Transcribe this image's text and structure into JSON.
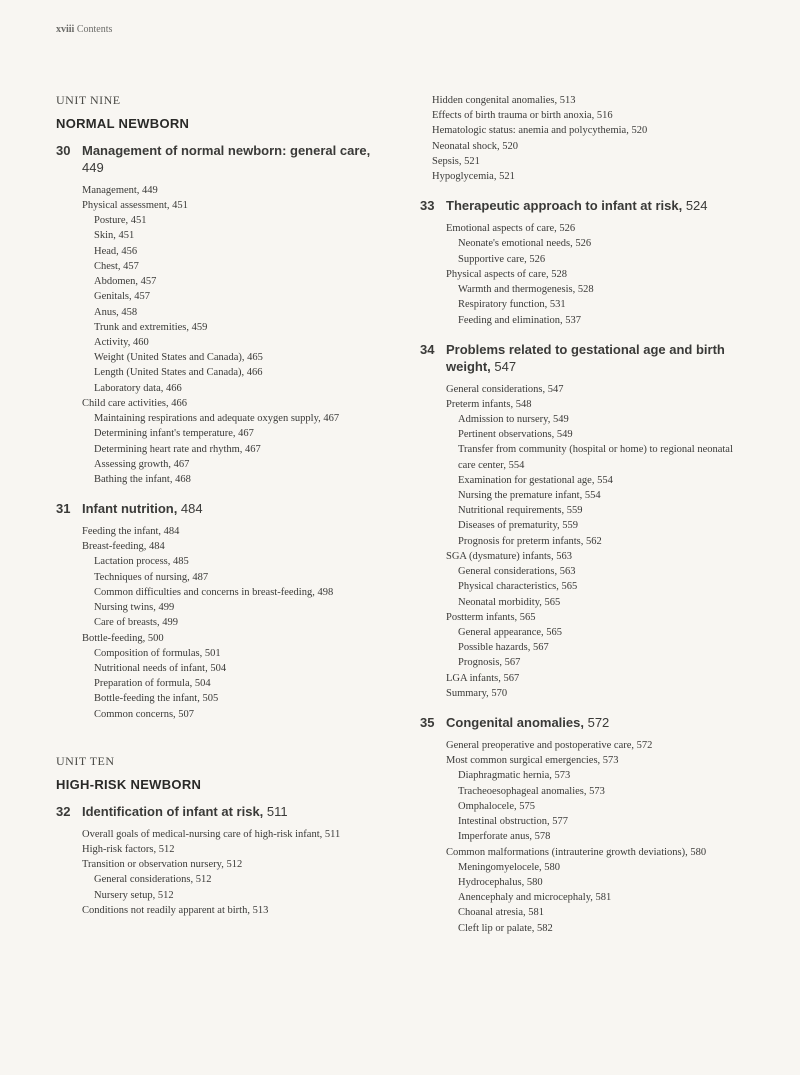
{
  "header": {
    "page_num": "xviii",
    "section": "Contents"
  },
  "left_column": {
    "units": [
      {
        "label": "UNIT NINE",
        "title": "NORMAL NEWBORN",
        "chapters": [
          {
            "num": "30",
            "title": "Management of normal newborn: general care,",
            "page": "449",
            "entries": [
              {
                "t": "Management, 449",
                "l": 0
              },
              {
                "t": "Physical assessment, 451",
                "l": 0
              },
              {
                "t": "Posture, 451",
                "l": 1
              },
              {
                "t": "Skin, 451",
                "l": 1
              },
              {
                "t": "Head, 456",
                "l": 1
              },
              {
                "t": "Chest, 457",
                "l": 1
              },
              {
                "t": "Abdomen, 457",
                "l": 1
              },
              {
                "t": "Genitals, 457",
                "l": 1
              },
              {
                "t": "Anus, 458",
                "l": 1
              },
              {
                "t": "Trunk and extremities, 459",
                "l": 1
              },
              {
                "t": "Activity, 460",
                "l": 1
              },
              {
                "t": "Weight (United States and Canada), 465",
                "l": 1
              },
              {
                "t": "Length (United States and Canada), 466",
                "l": 1
              },
              {
                "t": "Laboratory data, 466",
                "l": 1
              },
              {
                "t": "Child care activities, 466",
                "l": 0
              },
              {
                "t": "Maintaining respirations and adequate oxygen supply, 467",
                "l": 1
              },
              {
                "t": "Determining infant's temperature, 467",
                "l": 1
              },
              {
                "t": "Determining heart rate and rhythm, 467",
                "l": 1
              },
              {
                "t": "Assessing growth, 467",
                "l": 1
              },
              {
                "t": "Bathing the infant, 468",
                "l": 1
              }
            ]
          },
          {
            "num": "31",
            "title": "Infant nutrition,",
            "page": "484",
            "entries": [
              {
                "t": "Feeding the infant, 484",
                "l": 0
              },
              {
                "t": "Breast-feeding, 484",
                "l": 0
              },
              {
                "t": "Lactation process, 485",
                "l": 1
              },
              {
                "t": "Techniques of nursing, 487",
                "l": 1
              },
              {
                "t": "Common difficulties and concerns in breast-feeding, 498",
                "l": 1
              },
              {
                "t": "Nursing twins, 499",
                "l": 1
              },
              {
                "t": "Care of breasts, 499",
                "l": 1
              },
              {
                "t": "Bottle-feeding, 500",
                "l": 0
              },
              {
                "t": "Composition of formulas, 501",
                "l": 1
              },
              {
                "t": "Nutritional needs of infant, 504",
                "l": 1
              },
              {
                "t": "Preparation of formula, 504",
                "l": 1
              },
              {
                "t": "Bottle-feeding the infant, 505",
                "l": 1
              },
              {
                "t": "Common concerns, 507",
                "l": 1
              }
            ]
          }
        ]
      },
      {
        "label": "UNIT TEN",
        "title": "HIGH-RISK NEWBORN",
        "spacer": true,
        "chapters": [
          {
            "num": "32",
            "title": "Identification of infant at risk,",
            "page": "511",
            "entries": [
              {
                "t": "Overall goals of medical-nursing care of high-risk infant, 511",
                "l": 0
              },
              {
                "t": "High-risk factors, 512",
                "l": 0
              },
              {
                "t": "Transition or observation nursery, 512",
                "l": 0
              },
              {
                "t": "General considerations, 512",
                "l": 1
              },
              {
                "t": "Nursery setup, 512",
                "l": 1
              },
              {
                "t": "Conditions not readily apparent at birth, 513",
                "l": 0
              }
            ]
          }
        ]
      }
    ]
  },
  "right_column": {
    "lead_entries": [
      {
        "t": "Hidden congenital anomalies, 513",
        "l": 1
      },
      {
        "t": "Effects of birth trauma or birth anoxia, 516",
        "l": 1
      },
      {
        "t": "Hematologic status: anemia and polycythemia, 520",
        "l": 1
      },
      {
        "t": "Neonatal shock, 520",
        "l": 1
      },
      {
        "t": "Sepsis, 521",
        "l": 1
      },
      {
        "t": "Hypoglycemia, 521",
        "l": 1
      }
    ],
    "chapters": [
      {
        "num": "33",
        "title": "Therapeutic approach to infant at risk,",
        "page": "524",
        "entries": [
          {
            "t": "Emotional aspects of care, 526",
            "l": 0
          },
          {
            "t": "Neonate's emotional needs, 526",
            "l": 1
          },
          {
            "t": "Supportive care, 526",
            "l": 1
          },
          {
            "t": "Physical aspects of care, 528",
            "l": 0
          },
          {
            "t": "Warmth and thermogenesis, 528",
            "l": 1
          },
          {
            "t": "Respiratory function, 531",
            "l": 1
          },
          {
            "t": "Feeding and elimination, 537",
            "l": 1
          }
        ]
      },
      {
        "num": "34",
        "title": "Problems related to gestational age and birth weight,",
        "page": "547",
        "entries": [
          {
            "t": "General considerations, 547",
            "l": 0
          },
          {
            "t": "Preterm infants, 548",
            "l": 0
          },
          {
            "t": "Admission to nursery, 549",
            "l": 1
          },
          {
            "t": "Pertinent observations, 549",
            "l": 1
          },
          {
            "t": "Transfer from community (hospital or home) to regional neonatal care center, 554",
            "l": 1
          },
          {
            "t": "Examination for gestational age, 554",
            "l": 1
          },
          {
            "t": "Nursing the premature infant, 554",
            "l": 1
          },
          {
            "t": "Nutritional requirements, 559",
            "l": 1
          },
          {
            "t": "Diseases of prematurity, 559",
            "l": 1
          },
          {
            "t": "Prognosis for preterm infants, 562",
            "l": 1
          },
          {
            "t": "SGA (dysmature) infants, 563",
            "l": 0
          },
          {
            "t": "General considerations, 563",
            "l": 1
          },
          {
            "t": "Physical characteristics, 565",
            "l": 1
          },
          {
            "t": "Neonatal morbidity, 565",
            "l": 1
          },
          {
            "t": "Postterm infants, 565",
            "l": 0
          },
          {
            "t": "General appearance, 565",
            "l": 1
          },
          {
            "t": "Possible hazards, 567",
            "l": 1
          },
          {
            "t": "Prognosis, 567",
            "l": 1
          },
          {
            "t": "LGA infants, 567",
            "l": 0
          },
          {
            "t": "Summary, 570",
            "l": 0
          }
        ]
      },
      {
        "num": "35",
        "title": "Congenital anomalies,",
        "page": "572",
        "entries": [
          {
            "t": "General preoperative and postoperative care, 572",
            "l": 0
          },
          {
            "t": "Most common surgical emergencies, 573",
            "l": 0
          },
          {
            "t": "Diaphragmatic hernia, 573",
            "l": 1
          },
          {
            "t": "Tracheoesophageal anomalies, 573",
            "l": 1
          },
          {
            "t": "Omphalocele, 575",
            "l": 1
          },
          {
            "t": "Intestinal obstruction, 577",
            "l": 1
          },
          {
            "t": "Imperforate anus, 578",
            "l": 1
          },
          {
            "t": "Common malformations (intrauterine growth deviations), 580",
            "l": 0
          },
          {
            "t": "Meningomyelocele, 580",
            "l": 1
          },
          {
            "t": "Hydrocephalus, 580",
            "l": 1
          },
          {
            "t": "Anencephaly and microcephaly, 581",
            "l": 1
          },
          {
            "t": "Choanal atresia, 581",
            "l": 1
          },
          {
            "t": "Cleft lip or palate, 582",
            "l": 1
          }
        ]
      }
    ]
  }
}
